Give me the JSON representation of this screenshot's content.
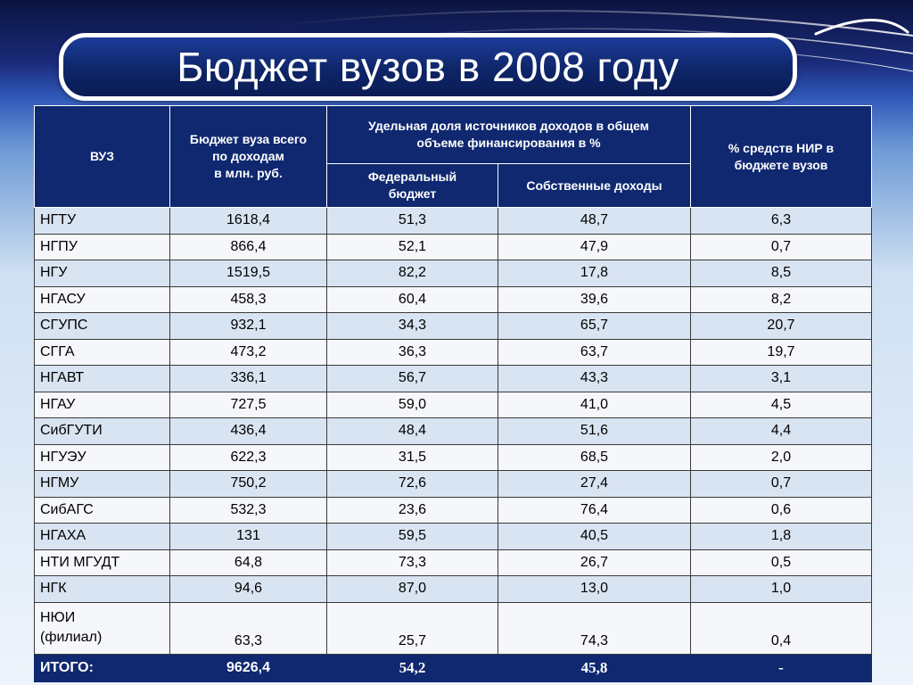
{
  "slide": {
    "title": "Бюджет вузов в 2008 году"
  },
  "table": {
    "headers": {
      "university": "ВУЗ",
      "budget_line1": "Бюджет вуза всего",
      "budget_line2": "по доходам",
      "budget_line3": "в млн. руб.",
      "share_line1": "Удельная доля источников доходов в общем",
      "share_line2": "объеме финансирования в %",
      "federal_line1": "Федеральный",
      "federal_line2": "бюджет",
      "own": "Собственные доходы",
      "research_line1": "% средств НИР в",
      "research_line2": "бюджете вузов"
    },
    "rows": [
      {
        "name": "НГТУ",
        "budget": "1618,4",
        "federal": "51,3",
        "own": "48,7",
        "research": "6,3"
      },
      {
        "name": "НГПУ",
        "budget": "866,4",
        "federal": "52,1",
        "own": "47,9",
        "research": "0,7"
      },
      {
        "name": "НГУ",
        "budget": "1519,5",
        "federal": "82,2",
        "own": "17,8",
        "research": "8,5"
      },
      {
        "name": "НГАСУ",
        "budget": "458,3",
        "federal": "60,4",
        "own": "39,6",
        "research": "8,2"
      },
      {
        "name": "СГУПС",
        "budget": "932,1",
        "federal": "34,3",
        "own": "65,7",
        "research": "20,7"
      },
      {
        "name": "СГГА",
        "budget": "473,2",
        "federal": "36,3",
        "own": "63,7",
        "research": "19,7"
      },
      {
        "name": "НГАВТ",
        "budget": "336,1",
        "federal": "56,7",
        "own": "43,3",
        "research": "3,1"
      },
      {
        "name": "НГАУ",
        "budget": "727,5",
        "federal": "59,0",
        "own": "41,0",
        "research": "4,5"
      },
      {
        "name": "СибГУТИ",
        "budget": "436,4",
        "federal": "48,4",
        "own": "51,6",
        "research": "4,4"
      },
      {
        "name": "НГУЭУ",
        "budget": "622,3",
        "federal": "31,5",
        "own": "68,5",
        "research": "2,0"
      },
      {
        "name": "НГМУ",
        "budget": "750,2",
        "federal": "72,6",
        "own": "27,4",
        "research": "0,7"
      },
      {
        "name": "СибАГС",
        "budget": "532,3",
        "federal": "23,6",
        "own": "76,4",
        "research": "0,6"
      },
      {
        "name": "НГАХА",
        "budget": "131",
        "federal": "59,5",
        "own": "40,5",
        "research": "1,8"
      },
      {
        "name": "НТИ МГУДТ",
        "budget": "64,8",
        "federal": "73,3",
        "own": "26,7",
        "research": "0,5"
      },
      {
        "name": "НГК",
        "budget": "94,6",
        "federal": "87,0",
        "own": "13,0",
        "research": "1,0"
      }
    ],
    "tall_row": {
      "name_line1": "НЮИ",
      "name_line2": "(филиал)",
      "budget": "63,3",
      "federal": "25,7",
      "own": "74,3",
      "research": "0,4"
    },
    "total": {
      "label": "ИТОГО:",
      "budget": "9626,4",
      "federal": "54,2",
      "own": "45,8",
      "research": "-"
    }
  }
}
